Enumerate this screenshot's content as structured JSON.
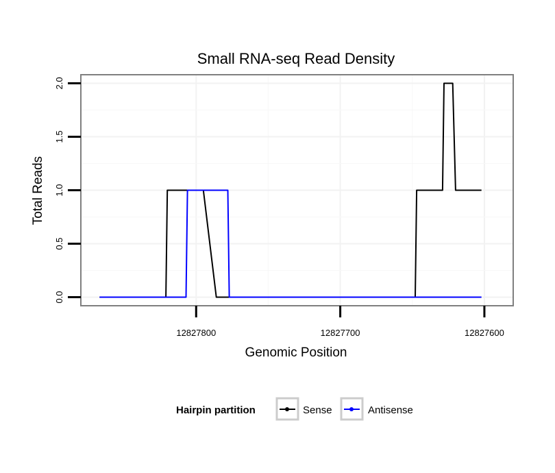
{
  "chart_data": {
    "type": "line",
    "title": "Small RNA-seq Read Density",
    "xlabel": "Genomic Position",
    "ylabel": "Total Reads",
    "xlim": [
      12827880,
      12827580
    ],
    "ylim": [
      -0.08,
      2.08
    ],
    "x_reversed": true,
    "x_ticks": [
      12827800,
      12827700,
      12827600
    ],
    "x_tick_labels": [
      "12827800",
      "12827700",
      "12827600"
    ],
    "y_ticks": [
      0,
      0.5,
      1,
      1.5,
      2
    ],
    "y_tick_labels": [
      "0.0",
      "0.5",
      "1.0",
      "1.5",
      "2.0"
    ],
    "grid": true,
    "legend": {
      "title": "Hairpin partition",
      "position": "bottom"
    },
    "series": [
      {
        "name": "Sense",
        "color": "#000000",
        "x": [
          12827867,
          12827821,
          12827820,
          12827796,
          12827795,
          12827786,
          12827757,
          12827755,
          12827648,
          12827647,
          12827629,
          12827628,
          12827622,
          12827620,
          12827602
        ],
        "y": [
          0,
          0,
          1,
          1,
          1,
          0,
          0,
          0,
          0,
          1,
          1,
          2,
          2,
          1,
          1
        ]
      },
      {
        "name": "Antisense",
        "color": "#0000ff",
        "x": [
          12827867,
          12827807,
          12827806,
          12827798,
          12827787,
          12827786,
          12827778,
          12827777,
          12827602
        ],
        "y": [
          0,
          0,
          1,
          1,
          1,
          1,
          1,
          0,
          0
        ]
      }
    ]
  }
}
